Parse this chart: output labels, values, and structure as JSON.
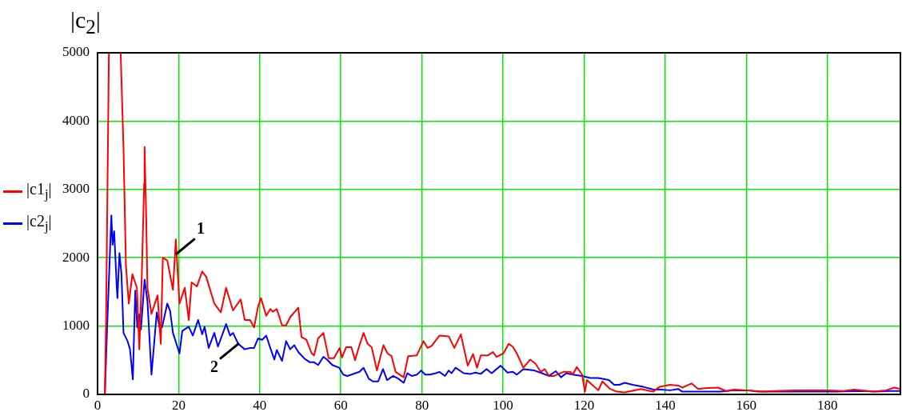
{
  "chart_data": {
    "type": "line",
    "title": "|c$_{2}$|",
    "xlim": [
      0,
      198
    ],
    "xticks": [
      0,
      20,
      40,
      60,
      80,
      100,
      120,
      140,
      160,
      180
    ],
    "ylim": [
      0,
      5000
    ],
    "yticks": [
      0,
      1000,
      2000,
      3000,
      4000,
      5000
    ],
    "grid": true,
    "legend": "left",
    "annotations": [
      {
        "text": "1",
        "x": 19.5,
        "y": 2060
      },
      {
        "text": "2",
        "x": 34.7,
        "y": 740
      }
    ],
    "series": [
      {
        "name": "|c1$_{j}$|",
        "color": "#ff0000",
        "x": [
          1.8,
          2.1,
          2.8,
          5.7,
          6.4,
          7.0,
          7.7,
          8.6,
          9.7,
          10.3,
          10.9,
          11.5,
          11.6,
          12.0,
          12.3,
          13.3,
          14.8,
          15.6,
          16.1,
          17.2,
          18.6,
          19.3,
          20.2,
          21.5,
          22.5,
          23.2,
          24.5,
          25.8,
          26.8,
          28.8,
          30.4,
          31.7,
          33.4,
          35.3,
          36.3,
          37.6,
          38.6,
          39.6,
          40.3,
          41.6,
          42.6,
          43.2,
          44.2,
          45.5,
          46.5,
          47.5,
          49.5,
          50.3,
          51.5,
          52.8,
          53.4,
          54.4,
          55.7,
          57.0,
          58.3,
          59.7,
          60.3,
          61.3,
          62.6,
          63.5,
          64.6,
          65.6,
          66.6,
          67.6,
          68.9,
          70.5,
          71.5,
          72.5,
          73.5,
          75.5,
          76.6,
          78.7,
          80.4,
          81.4,
          82.4,
          84.3,
          86.6,
          88.0,
          89.6,
          91.3,
          92.6,
          93.6,
          94.5,
          96.2,
          97.5,
          98.4,
          100.1,
          101.4,
          102.4,
          103.4,
          105.0,
          106.7,
          108.0,
          109.3,
          110.3,
          111.3,
          112.6,
          114.9,
          116.6,
          117.2,
          118.2,
          119.5,
          120.2,
          120.7,
          121.8,
          123.5,
          124.5,
          126.4,
          128.1,
          130,
          134,
          137,
          138.6,
          141.2,
          143.2,
          144.2,
          146.5,
          148.1,
          149.8,
          153,
          155,
          157,
          160.2,
          164.3,
          166.9,
          172.2,
          180.1,
          184,
          186.6,
          191.2,
          194.5,
          196.5,
          198
        ],
        "values": [
          0,
          1090,
          5000,
          5000,
          3600,
          1880,
          1330,
          1760,
          1560,
          660,
          1720,
          3090,
          3620,
          2590,
          1560,
          1180,
          1450,
          740,
          2000,
          1960,
          1530,
          2270,
          1330,
          1560,
          1090,
          1640,
          1580,
          1800,
          1720,
          1330,
          1200,
          1560,
          1230,
          1390,
          1090,
          1090,
          980,
          1290,
          1410,
          1150,
          1250,
          1210,
          1250,
          1010,
          1010,
          1130,
          1270,
          840,
          800,
          600,
          570,
          820,
          900,
          530,
          530,
          680,
          540,
          690,
          690,
          500,
          720,
          900,
          740,
          690,
          350,
          720,
          600,
          560,
          330,
          250,
          560,
          570,
          780,
          680,
          710,
          860,
          850,
          680,
          880,
          420,
          590,
          390,
          570,
          570,
          620,
          550,
          600,
          740,
          700,
          600,
          390,
          510,
          450,
          330,
          370,
          270,
          270,
          330,
          330,
          290,
          400,
          290,
          40,
          210,
          150,
          60,
          190,
          80,
          40,
          30,
          80,
          40,
          110,
          140,
          130,
          100,
          160,
          80,
          90,
          100,
          50,
          70,
          60,
          40,
          50,
          60,
          60,
          50,
          70,
          40,
          60,
          100,
          80
        ]
      },
      {
        "name": "|c2$_{j}$|",
        "color": "#0000ff",
        "x": [
          1.8,
          2.4,
          3.4,
          3.7,
          4.1,
          4.7,
          4.9,
          5.4,
          5.9,
          6.4,
          7.4,
          8.0,
          8.7,
          9.3,
          9.8,
          10.3,
          10.7,
          11.6,
          12.3,
          13.3,
          14.6,
          15.3,
          15.9,
          17.2,
          17.9,
          18.6,
          20.2,
          20.9,
          22.5,
          23.5,
          24.8,
          25.8,
          26.4,
          27.4,
          28.8,
          29.7,
          31.7,
          32.7,
          33.4,
          34.7,
          36.3,
          37.6,
          38.6,
          39.6,
          40.6,
          41.6,
          42.6,
          43.6,
          44.2,
          45.5,
          46.5,
          47.5,
          48.5,
          49.5,
          51.1,
          52.4,
          53.4,
          54.4,
          55.7,
          56.6,
          57.9,
          59.6,
          60.6,
          61.6,
          63.6,
          64.6,
          65.6,
          66.9,
          67.9,
          69.2,
          70.4,
          71.4,
          72.9,
          74.2,
          75.5,
          76.4,
          77.5,
          78.8,
          79.8,
          80.8,
          82.0,
          83.4,
          84.3,
          85.7,
          86.6,
          87.3,
          88.3,
          90.3,
          92,
          93.2,
          94.5,
          95.9,
          97.2,
          99.4,
          101.1,
          102.4,
          103.4,
          105.0,
          106.4,
          107.7,
          109.6,
          111.3,
          113.0,
          114.3,
          115.6,
          117.2,
          119.5,
          121.5,
          123.5,
          126.1,
          127.4,
          128.7,
          130,
          132,
          134.6,
          137.2,
          138.9,
          141.2,
          143.2,
          144.2,
          147.8,
          151.1,
          153.7,
          157,
          160.2,
          162.9,
          168.8,
          175.4,
          182,
          188.6,
          191.9,
          195.2,
          198
        ],
        "values": [
          0,
          1040,
          2620,
          2190,
          2390,
          1610,
          1410,
          2070,
          1760,
          900,
          780,
          660,
          220,
          1520,
          980,
          1170,
          950,
          1680,
          1370,
          290,
          1200,
          980,
          980,
          1330,
          1220,
          900,
          600,
          930,
          990,
          860,
          1090,
          880,
          990,
          680,
          900,
          700,
          1030,
          860,
          900,
          740,
          660,
          680,
          680,
          820,
          800,
          860,
          680,
          510,
          650,
          490,
          780,
          660,
          720,
          620,
          520,
          470,
          470,
          430,
          550,
          510,
          430,
          390,
          290,
          270,
          310,
          330,
          390,
          230,
          190,
          190,
          370,
          210,
          270,
          230,
          170,
          310,
          270,
          290,
          350,
          290,
          290,
          310,
          330,
          270,
          350,
          310,
          390,
          310,
          300,
          320,
          300,
          370,
          310,
          420,
          320,
          330,
          290,
          370,
          360,
          350,
          310,
          270,
          340,
          250,
          310,
          290,
          270,
          240,
          240,
          210,
          140,
          140,
          170,
          140,
          110,
          70,
          70,
          60,
          80,
          40,
          40,
          40,
          40,
          60,
          60,
          40,
          40,
          40,
          40,
          50,
          40,
          50,
          50
        ]
      }
    ]
  }
}
